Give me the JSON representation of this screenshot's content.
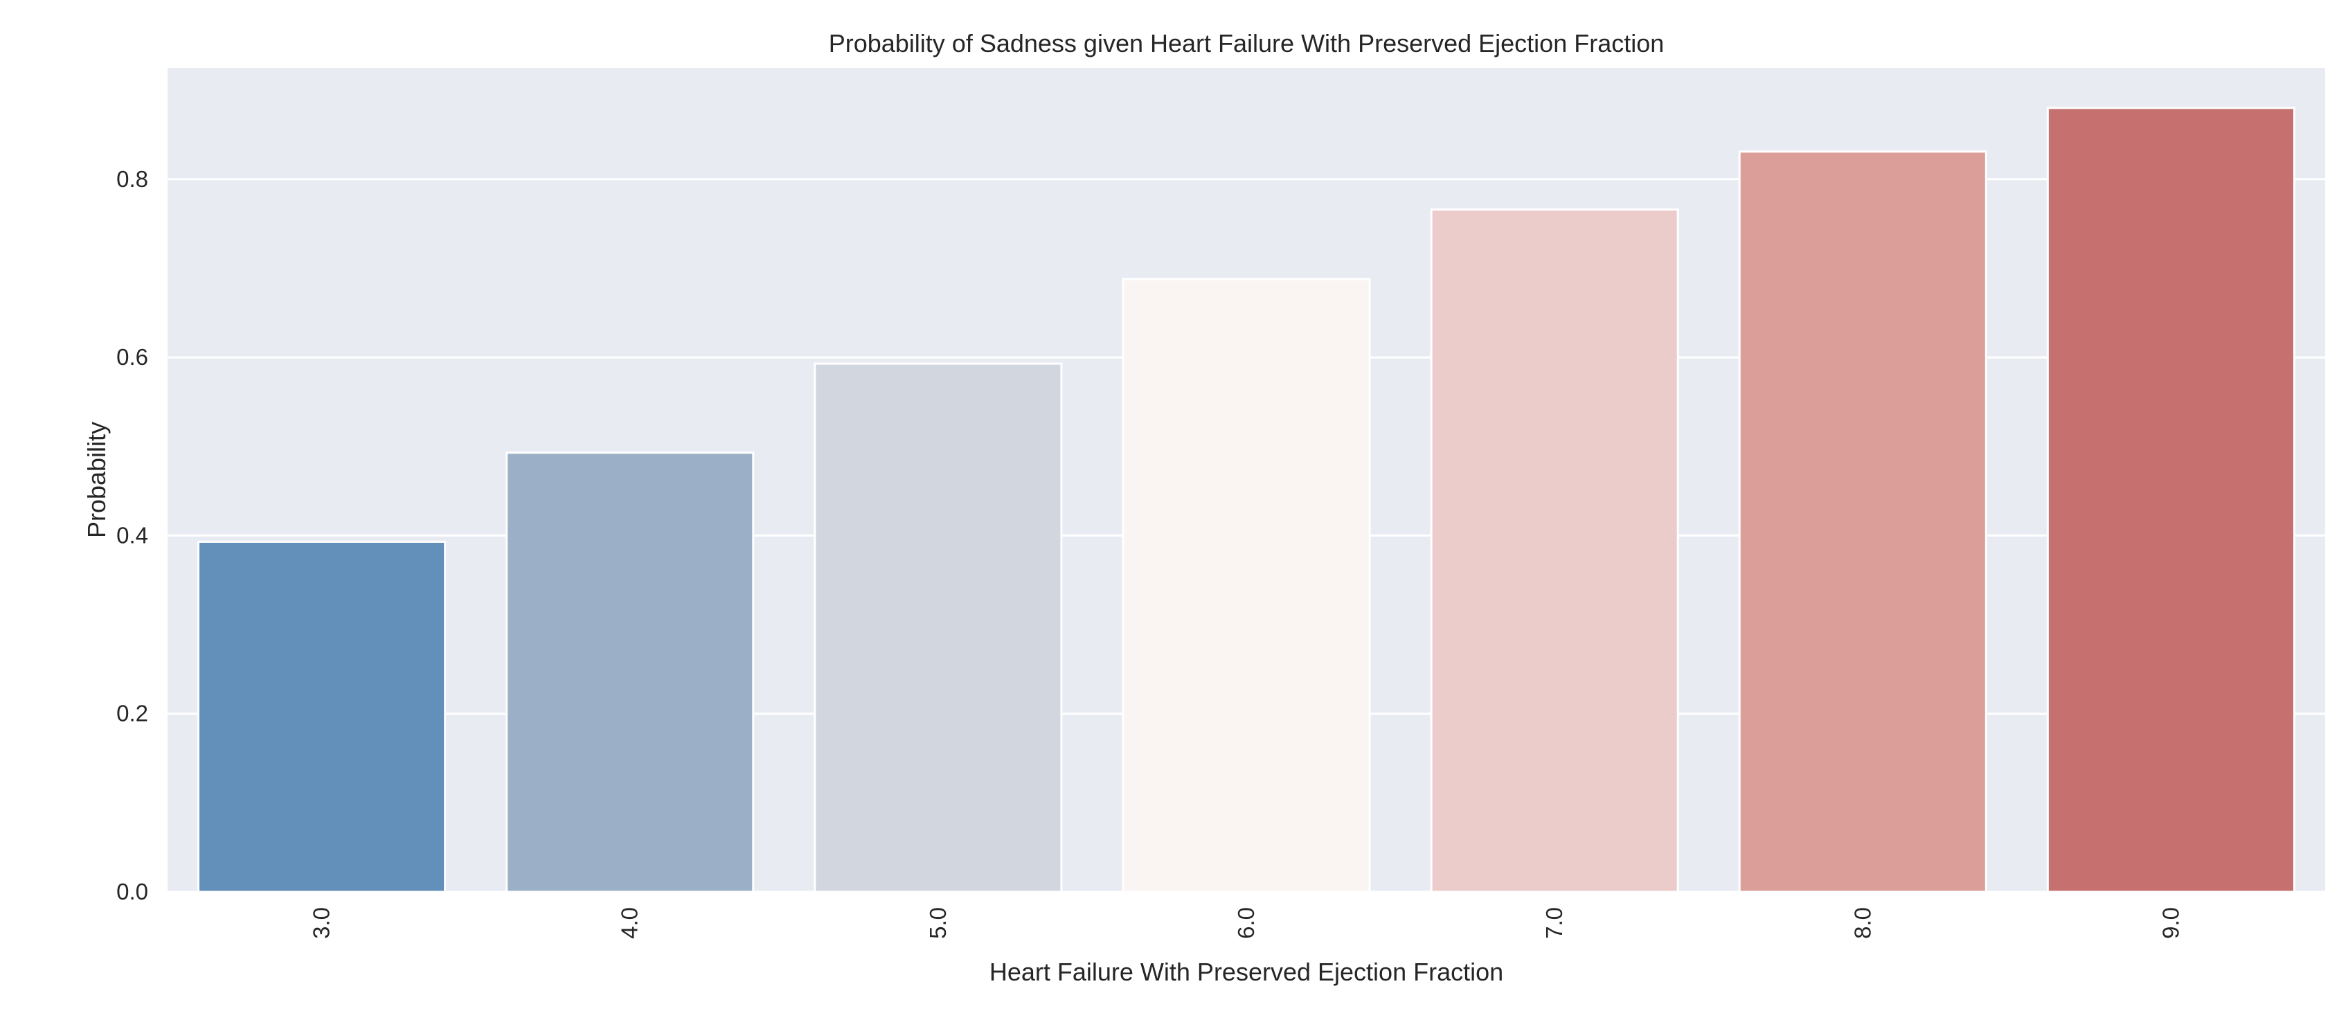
{
  "chart_data": {
    "type": "bar",
    "title": "Probability of Sadness given Heart Failure With Preserved Ejection Fraction",
    "xlabel": "Heart Failure With Preserved Ejection Fraction",
    "ylabel": "Probability",
    "categories": [
      "3.0",
      "4.0",
      "5.0",
      "6.0",
      "7.0",
      "8.0",
      "9.0"
    ],
    "values": [
      0.393,
      0.493,
      0.593,
      0.688,
      0.766,
      0.831,
      0.88
    ],
    "colors": [
      "#6390ba",
      "#9bb0c7",
      "#d1d6df",
      "#faf5f3",
      "#ecccca",
      "#db9e99",
      "#c6716f"
    ],
    "ylim": [
      0,
      0.925
    ],
    "yticks": [
      0.0,
      0.2,
      0.4,
      0.6,
      0.8
    ],
    "ytick_labels": [
      "0.0",
      "0.2",
      "0.4",
      "0.6",
      "0.8"
    ],
    "grid": true,
    "background": "#e9ebf3",
    "legend": "none"
  }
}
